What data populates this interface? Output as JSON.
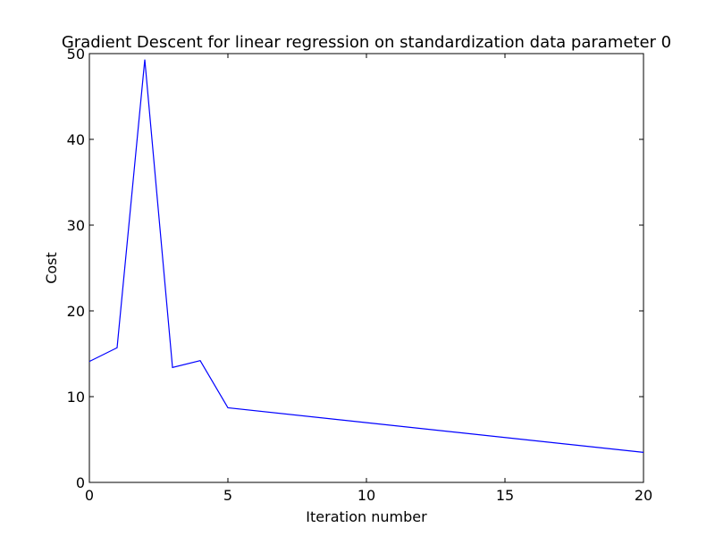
{
  "chart_data": {
    "type": "line",
    "title": "Gradient Descent for linear regression on standardization data parameter 0",
    "xlabel": "Iteration number",
    "ylabel": "Cost",
    "xlim": [
      0,
      20
    ],
    "ylim": [
      0,
      50
    ],
    "xticks": [
      0,
      5,
      10,
      15,
      20
    ],
    "yticks": [
      0,
      10,
      20,
      30,
      40,
      50
    ],
    "xtick_labels": [
      "0",
      "5",
      "10",
      "15",
      "20"
    ],
    "ytick_labels": [
      "0",
      "10",
      "20",
      "30",
      "40",
      "50"
    ],
    "grid": false,
    "series": [
      {
        "color": "#0000ff",
        "x": [
          0,
          1,
          2,
          3,
          4,
          5,
          20
        ],
        "y": [
          14.1,
          15.7,
          49.3,
          13.4,
          14.2,
          8.7,
          3.5
        ]
      }
    ]
  }
}
